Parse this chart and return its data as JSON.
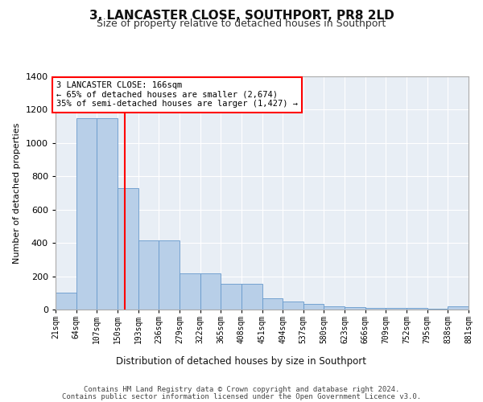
{
  "title": "3, LANCASTER CLOSE, SOUTHPORT, PR8 2LD",
  "subtitle": "Size of property relative to detached houses in Southport",
  "xlabel": "Distribution of detached houses by size in Southport",
  "ylabel": "Number of detached properties",
  "footer1": "Contains HM Land Registry data © Crown copyright and database right 2024.",
  "footer2": "Contains public sector information licensed under the Open Government Licence v3.0.",
  "annotation_line1": "3 LANCASTER CLOSE: 166sqm",
  "annotation_line2": "← 65% of detached houses are smaller (2,674)",
  "annotation_line3": "35% of semi-detached houses are larger (1,427) →",
  "bar_color": "#b8cfe8",
  "bar_edge_color": "#6699cc",
  "red_line_x": 166,
  "ylim": [
    0,
    1400
  ],
  "yticks": [
    0,
    200,
    400,
    600,
    800,
    1000,
    1200,
    1400
  ],
  "bin_edges": [
    21,
    64,
    107,
    150,
    193,
    236,
    279,
    322,
    365,
    408,
    451,
    494,
    537,
    580,
    623,
    666,
    709,
    752,
    795,
    838,
    881
  ],
  "bar_heights": [
    100,
    1150,
    1150,
    730,
    415,
    415,
    215,
    215,
    155,
    155,
    70,
    50,
    33,
    20,
    15,
    12,
    12,
    12,
    5,
    20
  ]
}
